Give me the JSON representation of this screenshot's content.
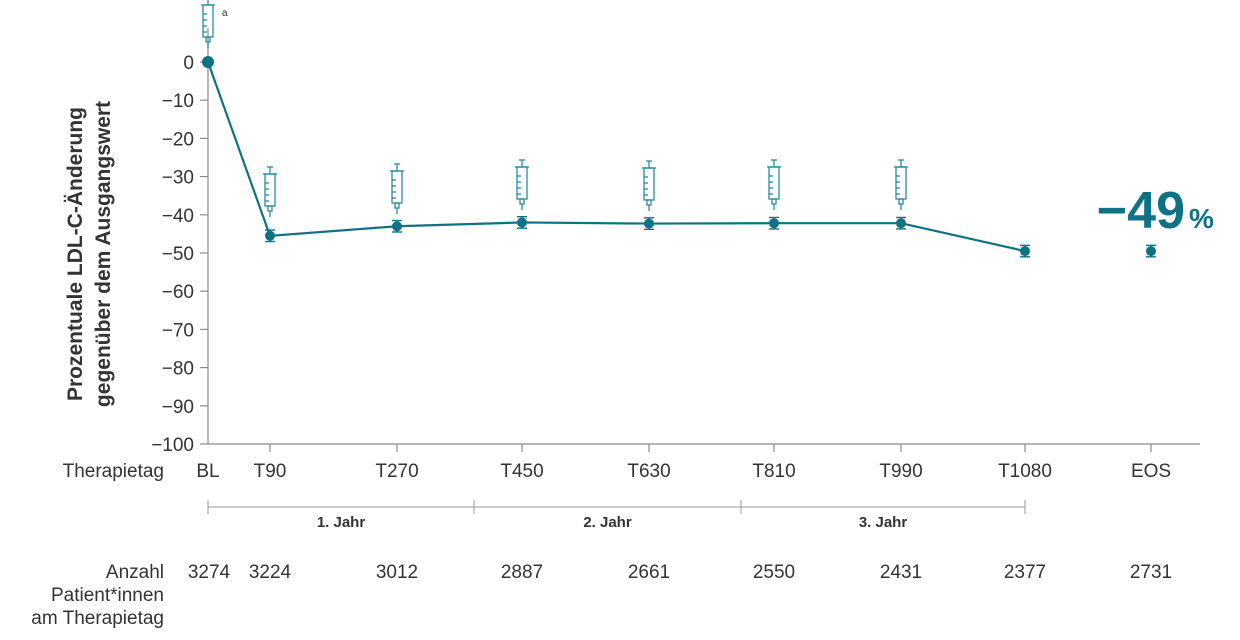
{
  "chart_data": {
    "type": "line",
    "ylabel_line1": "Prozentuale LDL-C-Änderung",
    "ylabel_line2": "gegenüber dem Ausgangswert",
    "xlabel": "Therapietag",
    "ylim": [
      -100,
      0
    ],
    "yticks": [
      "0",
      "−10",
      "−20",
      "−30",
      "−40",
      "−50",
      "−60",
      "−70",
      "−80",
      "−90",
      "−100"
    ],
    "ytick_values": [
      0,
      -10,
      -20,
      -30,
      -40,
      -50,
      -60,
      -70,
      -80,
      -90,
      -100
    ],
    "categories": [
      "BL",
      "T90",
      "T270",
      "T450",
      "T630",
      "T810",
      "T990",
      "T1080",
      "EOS"
    ],
    "series": [
      {
        "values": [
          0,
          -45.5,
          -43,
          -42,
          -42.3,
          -42.2,
          -42.2,
          -49.5,
          -49.5
        ],
        "error_low": [
          0,
          1.5,
          1.5,
          1.5,
          1.5,
          1.5,
          1.5,
          1.5,
          1.5
        ],
        "error_high": [
          0,
          1.5,
          1.5,
          1.5,
          1.5,
          1.5,
          1.5,
          1.5,
          1.5
        ],
        "connected_until_index": 7,
        "color": "#0f7184"
      }
    ],
    "injection_markers_at": [
      "BL",
      "T90",
      "T270",
      "T450",
      "T630",
      "T810",
      "T990"
    ],
    "injection_marker_footnote": "a",
    "injection_marker_color": "#2a8aa0",
    "highlight_value": "−49",
    "highlight_unit": "%",
    "highlight_color": "#0f7184",
    "year_periods": [
      {
        "label": "1. Jahr",
        "from": "BL",
        "to": "T270_T450"
      },
      {
        "label": "2. Jahr",
        "from": "T270_T450",
        "to": "T630_T810"
      },
      {
        "label": "3. Jahr",
        "from": "T630_T810",
        "to": "T1080"
      }
    ],
    "patients_label": [
      "Anzahl",
      "Patient*innen",
      "am Therapietag"
    ],
    "patients": [
      "3274",
      "3224",
      "3012",
      "2887",
      "2661",
      "2550",
      "2431",
      "2377",
      "2731"
    ],
    "grid": false
  }
}
